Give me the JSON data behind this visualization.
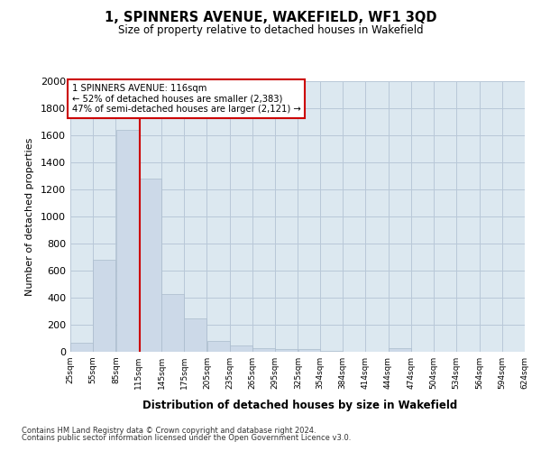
{
  "title": "1, SPINNERS AVENUE, WAKEFIELD, WF1 3QD",
  "subtitle": "Size of property relative to detached houses in Wakefield",
  "xlabel": "Distribution of detached houses by size in Wakefield",
  "ylabel": "Number of detached properties",
  "footnote1": "Contains HM Land Registry data © Crown copyright and database right 2024.",
  "footnote2": "Contains public sector information licensed under the Open Government Licence v3.0.",
  "property_label": "1 SPINNERS AVENUE: 116sqm",
  "annotation_line1": "← 52% of detached houses are smaller (2,383)",
  "annotation_line2": "47% of semi-detached houses are larger (2,121) →",
  "property_size_sqm": 116,
  "bar_color": "#ccd9e8",
  "bar_edge_color": "#aabbcc",
  "annotation_box_color": "#cc0000",
  "property_line_color": "#cc0000",
  "background_color": "#ffffff",
  "grid_color": "#b8c8d8",
  "axes_bg_color": "#dce8f0",
  "ylim": [
    0,
    2000
  ],
  "yticks": [
    0,
    200,
    400,
    600,
    800,
    1000,
    1200,
    1400,
    1600,
    1800,
    2000
  ],
  "bin_edges": [
    25,
    55,
    85,
    115,
    145,
    175,
    205,
    235,
    265,
    295,
    325,
    354,
    384,
    414,
    444,
    474,
    504,
    534,
    564,
    594,
    624
  ],
  "bar_heights": [
    70,
    680,
    1640,
    1280,
    430,
    250,
    80,
    50,
    30,
    22,
    18,
    5,
    0,
    0,
    25,
    0,
    0,
    0,
    0,
    0
  ],
  "tick_labels": [
    "25sqm",
    "55sqm",
    "85sqm",
    "115sqm",
    "145sqm",
    "175sqm",
    "205sqm",
    "235sqm",
    "265sqm",
    "295sqm",
    "325sqm",
    "354sqm",
    "384sqm",
    "414sqm",
    "444sqm",
    "474sqm",
    "504sqm",
    "534sqm",
    "564sqm",
    "594sqm",
    "624sqm"
  ]
}
